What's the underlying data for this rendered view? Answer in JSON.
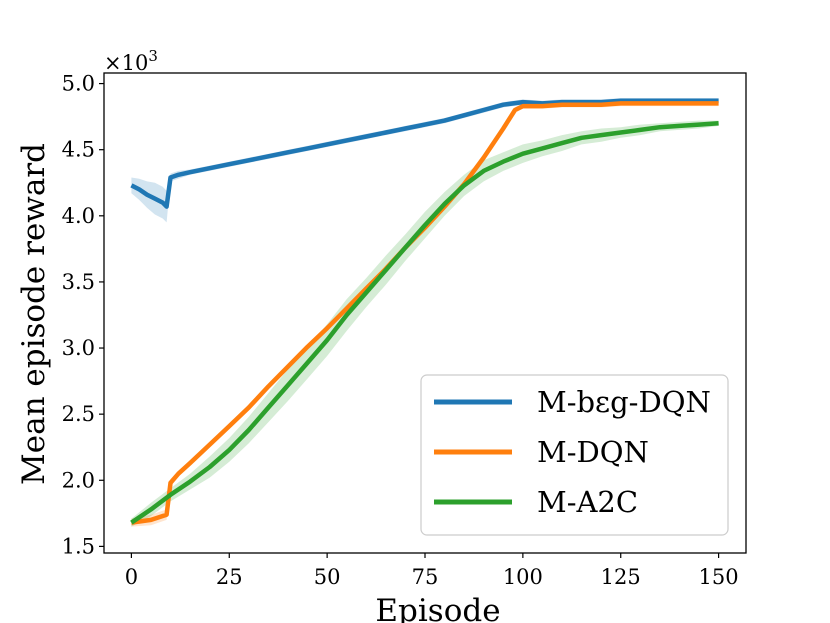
{
  "chart_data": {
    "type": "line",
    "title": "",
    "xlabel": "Episode",
    "ylabel": "Mean episode reward",
    "y_multiplier": "×10",
    "y_multiplier_exp": "3",
    "xlim": [
      -7,
      157
    ],
    "ylim": [
      1.45,
      5.08
    ],
    "xticks": [
      0,
      25,
      50,
      75,
      100,
      125,
      150
    ],
    "yticks": [
      1.5,
      2.0,
      2.5,
      3.0,
      3.5,
      4.0,
      4.5,
      5.0
    ],
    "xtick_labels": [
      "0",
      "25",
      "50",
      "75",
      "100",
      "125",
      "150"
    ],
    "ytick_labels": [
      "1.5",
      "2.0",
      "2.5",
      "3.0",
      "3.5",
      "4.0",
      "4.5",
      "5.0"
    ],
    "legend_position": "lower-right",
    "series": [
      {
        "name": "M-bεg-DQN",
        "color": "#1f77b4",
        "x": [
          0,
          2,
          4,
          6,
          8,
          9,
          10,
          12,
          15,
          20,
          25,
          30,
          35,
          40,
          45,
          50,
          55,
          60,
          65,
          70,
          75,
          80,
          85,
          90,
          95,
          100,
          105,
          110,
          115,
          120,
          125,
          130,
          135,
          140,
          145,
          150
        ],
        "values": [
          4.23,
          4.2,
          4.16,
          4.13,
          4.1,
          4.07,
          4.29,
          4.31,
          4.33,
          4.36,
          4.39,
          4.42,
          4.45,
          4.48,
          4.51,
          4.54,
          4.57,
          4.6,
          4.63,
          4.66,
          4.69,
          4.72,
          4.76,
          4.8,
          4.84,
          4.86,
          4.85,
          4.86,
          4.86,
          4.86,
          4.87,
          4.87,
          4.87,
          4.87,
          4.87,
          4.87
        ],
        "band": [
          0.06,
          0.08,
          0.1,
          0.12,
          0.12,
          0.12,
          0.03,
          0.03,
          0.02,
          0.02,
          0.02,
          0.02,
          0.02,
          0.02,
          0.02,
          0.02,
          0.02,
          0.02,
          0.02,
          0.02,
          0.02,
          0.02,
          0.02,
          0.02,
          0.02,
          0.02,
          0.02,
          0.02,
          0.02,
          0.02,
          0.02,
          0.02,
          0.02,
          0.02,
          0.02,
          0.02
        ]
      },
      {
        "name": "M-DQN",
        "color": "#ff7f0e",
        "x": [
          0,
          5,
          9,
          10,
          12,
          15,
          20,
          25,
          30,
          35,
          40,
          45,
          50,
          55,
          60,
          65,
          70,
          75,
          80,
          85,
          90,
          95,
          98,
          100,
          105,
          110,
          115,
          120,
          125,
          130,
          135,
          140,
          145,
          150
        ],
        "values": [
          1.68,
          1.7,
          1.74,
          1.98,
          2.05,
          2.13,
          2.27,
          2.41,
          2.55,
          2.71,
          2.86,
          3.01,
          3.15,
          3.3,
          3.45,
          3.6,
          3.76,
          3.91,
          4.07,
          4.24,
          4.44,
          4.66,
          4.8,
          4.83,
          4.83,
          4.84,
          4.84,
          4.84,
          4.85,
          4.85,
          4.85,
          4.85,
          4.85,
          4.85
        ],
        "band": [
          0.03,
          0.04,
          0.04,
          0.03,
          0.02,
          0.02,
          0.02,
          0.02,
          0.02,
          0.02,
          0.02,
          0.02,
          0.02,
          0.02,
          0.02,
          0.02,
          0.02,
          0.02,
          0.02,
          0.02,
          0.02,
          0.02,
          0.02,
          0.02,
          0.02,
          0.02,
          0.02,
          0.02,
          0.02,
          0.02,
          0.02,
          0.02,
          0.02,
          0.02
        ]
      },
      {
        "name": "M-A2C",
        "color": "#2ca02c",
        "x": [
          0,
          5,
          10,
          15,
          20,
          25,
          30,
          35,
          40,
          45,
          50,
          55,
          60,
          65,
          70,
          75,
          80,
          85,
          90,
          95,
          100,
          105,
          110,
          115,
          120,
          125,
          130,
          135,
          140,
          145,
          150
        ],
        "values": [
          1.68,
          1.78,
          1.89,
          1.99,
          2.1,
          2.23,
          2.38,
          2.55,
          2.72,
          2.89,
          3.06,
          3.25,
          3.42,
          3.59,
          3.76,
          3.93,
          4.09,
          4.23,
          4.34,
          4.41,
          4.47,
          4.51,
          4.55,
          4.59,
          4.61,
          4.63,
          4.65,
          4.67,
          4.68,
          4.69,
          4.7
        ],
        "band": [
          0.03,
          0.05,
          0.05,
          0.06,
          0.08,
          0.09,
          0.1,
          0.11,
          0.12,
          0.12,
          0.12,
          0.12,
          0.11,
          0.11,
          0.1,
          0.1,
          0.09,
          0.08,
          0.08,
          0.07,
          0.07,
          0.06,
          0.06,
          0.05,
          0.05,
          0.04,
          0.04,
          0.03,
          0.03,
          0.03,
          0.02
        ]
      }
    ]
  }
}
